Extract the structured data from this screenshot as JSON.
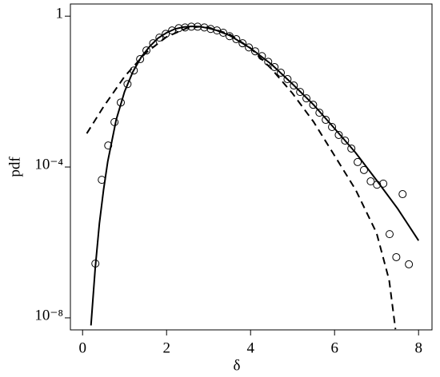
{
  "chart_data": {
    "type": "line",
    "log_y": true,
    "x_label": "δ",
    "y_label": "pdf",
    "xlim": [
      -0.29,
      8.32
    ],
    "xticks": [
      0,
      2,
      4,
      6,
      8
    ],
    "ylim": [
      4.8e-09,
      2.1
    ],
    "yticks": [
      1,
      {
        "value": 0.0001,
        "label": "10⁻⁴"
      },
      {
        "value": 1e-08,
        "label": "10⁻⁸"
      }
    ],
    "series": [
      {
        "style": "markers",
        "color": "#000000",
        "x": [
          0.305,
          0.457,
          0.61,
          0.76,
          0.91,
          1.07,
          1.22,
          1.37,
          1.52,
          1.68,
          1.83,
          1.98,
          2.13,
          2.29,
          2.44,
          2.59,
          2.74,
          2.9,
          3.05,
          3.2,
          3.35,
          3.5,
          3.66,
          3.81,
          3.96,
          4.11,
          4.27,
          4.42,
          4.57,
          4.72,
          4.88,
          5.03,
          5.18,
          5.33,
          5.49,
          5.64,
          5.79,
          5.94,
          6.1,
          6.25,
          6.4,
          6.55,
          6.7,
          6.86,
          7.01,
          7.16,
          7.31,
          7.47,
          7.62,
          7.77
        ],
        "values": [
          2.75e-07,
          4.57e-05,
          0.000372,
          0.00155,
          0.00513,
          0.0158,
          0.0363,
          0.0724,
          0.123,
          0.191,
          0.269,
          0.339,
          0.417,
          0.479,
          0.501,
          0.525,
          0.525,
          0.501,
          0.457,
          0.417,
          0.363,
          0.295,
          0.245,
          0.191,
          0.148,
          0.117,
          0.0871,
          0.0617,
          0.0447,
          0.0316,
          0.0214,
          0.0145,
          0.00977,
          0.00661,
          0.00447,
          0.00275,
          0.00178,
          0.00115,
          0.000708,
          0.000501,
          0.000309,
          0.000135,
          8.32e-05,
          4.17e-05,
          3.39e-05,
          3.63e-05,
          1.66e-06,
          4.07e-07,
          1.91e-05,
          2.63e-07
        ]
      },
      {
        "style": "solid",
        "color": "#000000",
        "x": [
          0.2,
          0.3,
          0.4,
          0.5,
          0.6,
          0.8,
          1.0,
          1.2,
          1.4,
          1.6,
          1.8,
          2.0,
          2.2,
          2.4,
          2.6,
          2.8,
          3.0,
          3.2,
          3.5,
          4.0,
          4.5,
          5.0,
          5.5,
          6.0,
          6.5,
          7.0,
          7.5,
          8.0
        ],
        "values": [
          6.31e-09,
          2e-07,
          3.16e-06,
          2.51e-05,
          0.000141,
          0.00178,
          0.01,
          0.0339,
          0.0832,
          0.158,
          0.263,
          0.363,
          0.457,
          0.513,
          0.537,
          0.525,
          0.479,
          0.417,
          0.309,
          0.141,
          0.0525,
          0.0158,
          0.00447,
          0.00105,
          0.00024,
          4.47e-05,
          7.94e-06,
          1.12e-06
        ]
      },
      {
        "style": "dashed",
        "color": "#000000",
        "x": [
          0.1,
          0.5,
          1.0,
          1.5,
          2.0,
          2.5,
          2.8,
          3.0,
          3.5,
          4.0,
          4.5,
          5.0,
          5.5,
          6.0,
          6.5,
          7.0,
          7.3,
          7.45
        ],
        "values": [
          0.000776,
          0.00398,
          0.0251,
          0.105,
          0.282,
          0.49,
          0.525,
          0.501,
          0.331,
          0.141,
          0.0398,
          0.00891,
          0.00158,
          0.0002,
          2.51e-05,
          1.78e-06,
          1e-07,
          5.01e-09
        ]
      }
    ]
  }
}
